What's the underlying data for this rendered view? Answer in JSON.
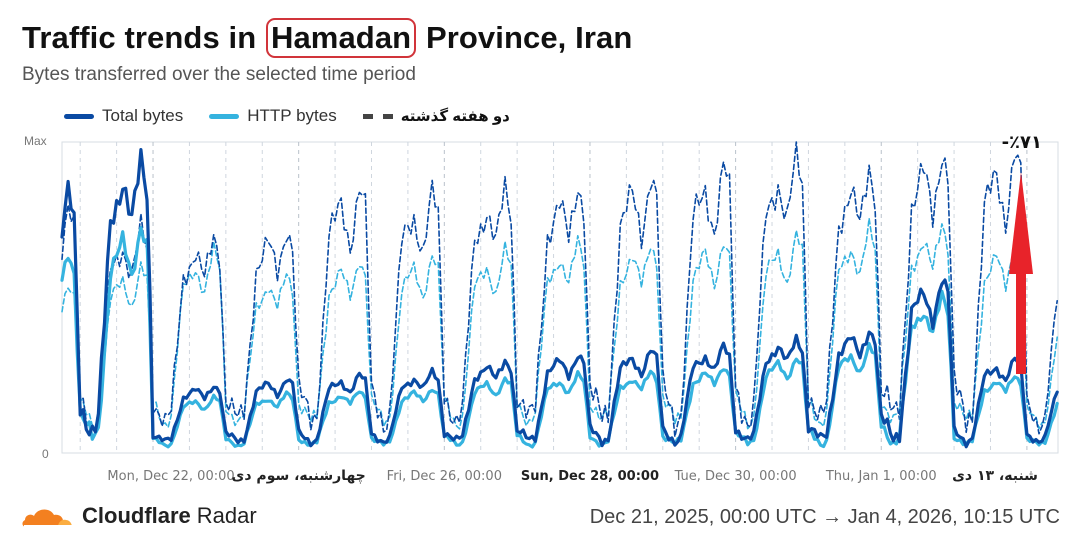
{
  "header": {
    "title_before": "Traffic trends in",
    "title_highlight": "Hamadan",
    "title_after": "Province, Iran",
    "subtitle": "Bytes transferred over the selected time period"
  },
  "legend": {
    "total": "Total bytes",
    "http": "HTTP bytes",
    "previous": "دو هفته گذشته"
  },
  "annotations": {
    "change": "-٪۷۱",
    "arrow_color": "#e8232a"
  },
  "colors": {
    "total": "#0a4aa3",
    "http": "#35b3df",
    "grid": "#cfd6de"
  },
  "footer": {
    "brand": "Cloudflare",
    "product": "Radar",
    "range": "Dec 21, 2025, 00:00 UTC → Jan 4, 2026, 10:15 UTC"
  },
  "chart_data": {
    "type": "line",
    "title": "Traffic trends in Hamadan Province, Iran",
    "subtitle": "Bytes transferred over the selected time period",
    "y_axis": {
      "top_label": "Max",
      "bottom_label": "0",
      "scale": "normalized, 0 to Max"
    },
    "x_ticks": [
      "Mon, Dec 22, 00:00",
      "چهارشنبه، سوم دی",
      "Fri, Dec 26, 00:00",
      "Sun, Dec 28, 00:00",
      "Tue, Dec 30, 00:00",
      "Thu, Jan 1, 00:00",
      "شنبه، ۱۳ دی"
    ],
    "x_range": [
      "2025-12-21T18:00",
      "2026-01-04T10:15"
    ],
    "day_peaks": {
      "days": [
        "Dec 21",
        "Dec 22",
        "Dec 23",
        "Dec 24",
        "Dec 25",
        "Dec 26",
        "Dec 27",
        "Dec 28",
        "Dec 29",
        "Dec 30",
        "Dec 31",
        "Jan 1",
        "Jan 2",
        "Jan 3",
        "Jan 4"
      ],
      "total_bytes": [
        0.83,
        0.95,
        0.22,
        0.24,
        0.25,
        0.26,
        0.3,
        0.32,
        0.33,
        0.34,
        0.37,
        0.4,
        0.56,
        0.3,
        0.25
      ],
      "http_bytes": [
        0.65,
        0.74,
        0.18,
        0.19,
        0.2,
        0.21,
        0.24,
        0.25,
        0.26,
        0.28,
        0.31,
        0.34,
        0.5,
        0.25,
        0.2
      ],
      "total_two_weeks_ago": [
        0.78,
        0.72,
        0.7,
        0.73,
        0.86,
        0.83,
        0.85,
        0.87,
        0.9,
        0.92,
        0.95,
        0.92,
        0.98,
        0.97,
        0.6
      ],
      "http_two_weeks_ago": [
        0.55,
        0.6,
        0.65,
        0.58,
        0.63,
        0.64,
        0.65,
        0.68,
        0.68,
        0.69,
        0.7,
        0.72,
        0.74,
        0.68,
        0.45
      ]
    },
    "day_troughs": {
      "total_bytes": 0.03,
      "http_bytes": 0.02,
      "two_weeks_ago": 0.08
    },
    "series": [
      {
        "name": "Total bytes",
        "style": "solid"
      },
      {
        "name": "HTTP bytes",
        "style": "solid"
      },
      {
        "name": "دو هفته گذشته",
        "style": "dashed"
      }
    ],
    "legend_position": "top-left",
    "grid": "vertical dashed"
  }
}
